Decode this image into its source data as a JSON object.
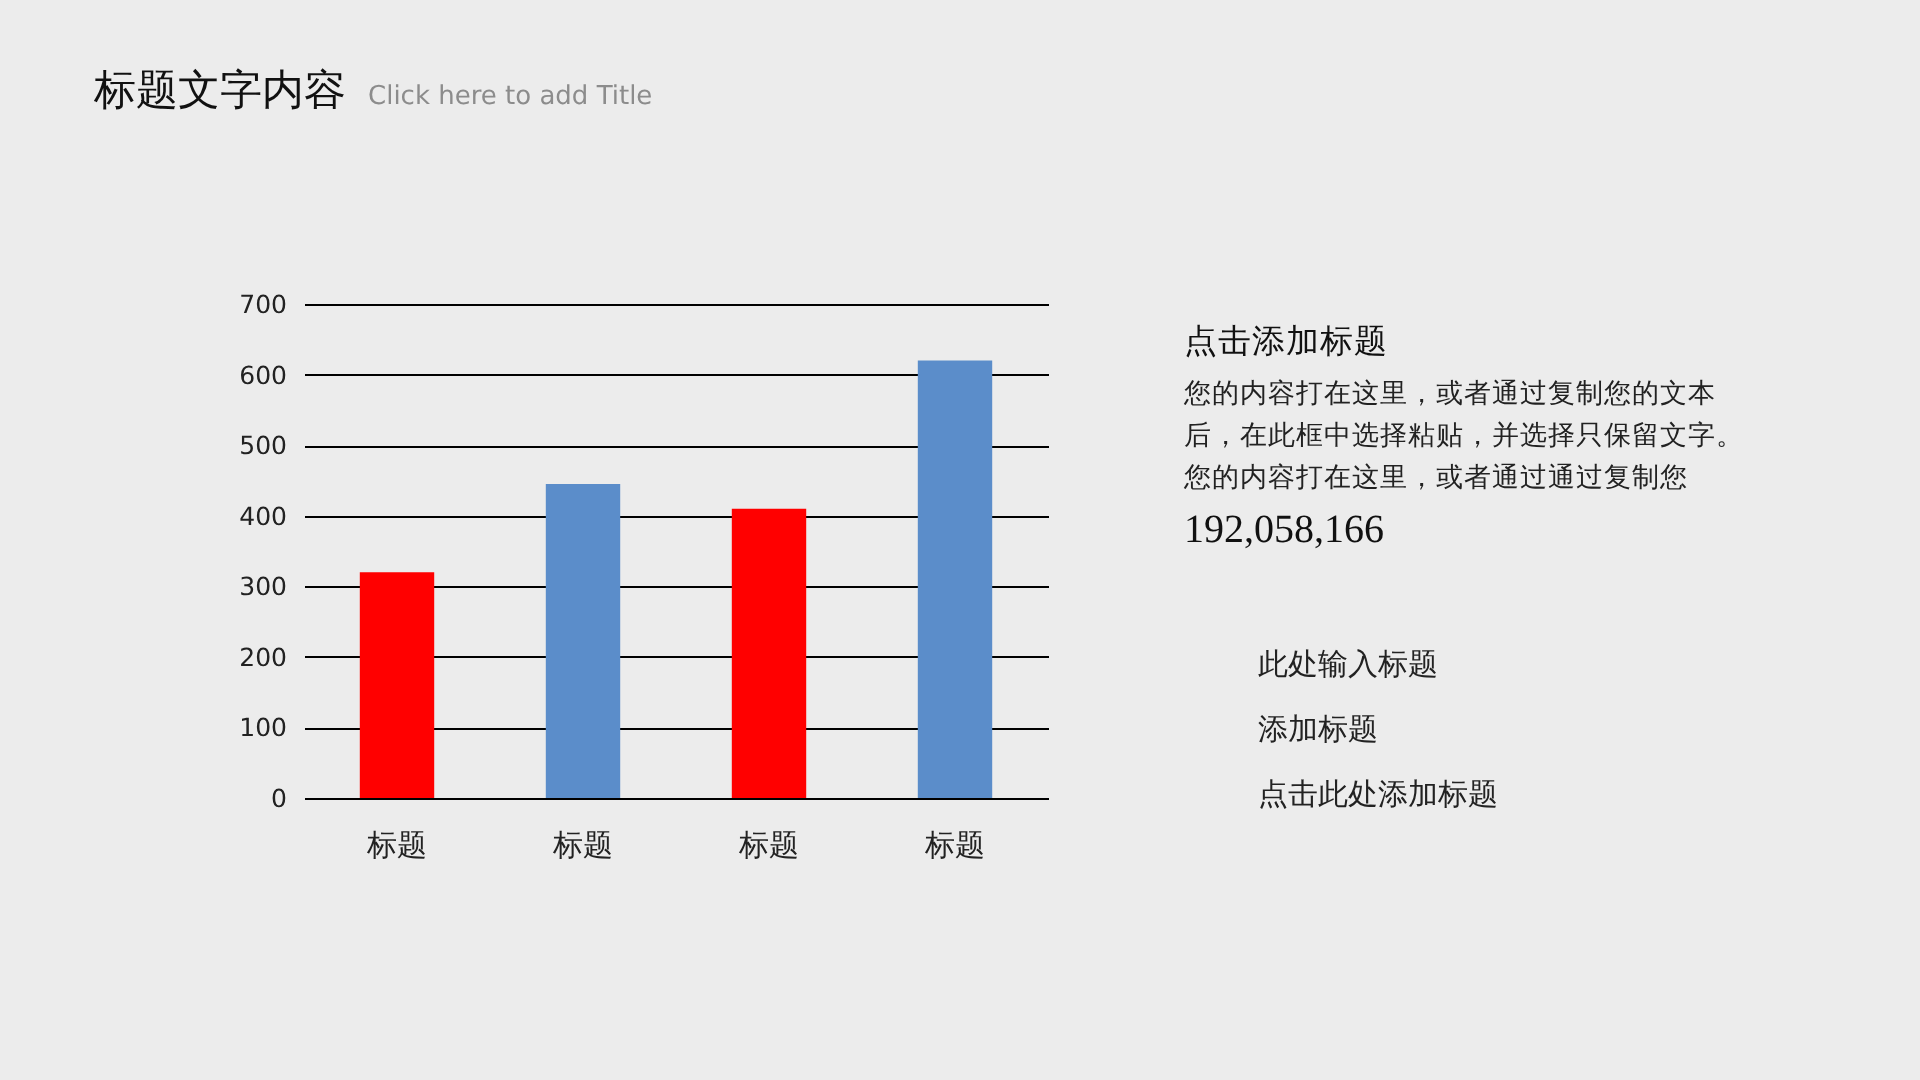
{
  "chart_data": [
    {
      "type": "bar",
      "title": "标题文字内容",
      "subtitle": "Click here to add Title",
      "categories": [
        "标题",
        "标题",
        "标题",
        "标题"
      ],
      "values": [
        320,
        445,
        410,
        620
      ],
      "colors": [
        "#ff0000",
        "#5b8dca",
        "#ff0000",
        "#5b8dca"
      ],
      "ylim": [
        0,
        700
      ],
      "yticks": [
        0,
        100,
        200,
        300,
        400,
        500,
        600,
        700
      ],
      "grid": "y"
    },
    {
      "type": "other",
      "title": "点击添加标题",
      "annotations": [
        "您的内容打在这里，或者通过复制您的文本",
        "后，在此框中选择粘贴，并选择只保留文字。",
        "您的内容打在这里，或者通过通过复制您",
        "192,058,166"
      ],
      "categories": [
        "此处输入标题",
        "添加标题",
        "点击此处添加标题"
      ]
    }
  ]
}
